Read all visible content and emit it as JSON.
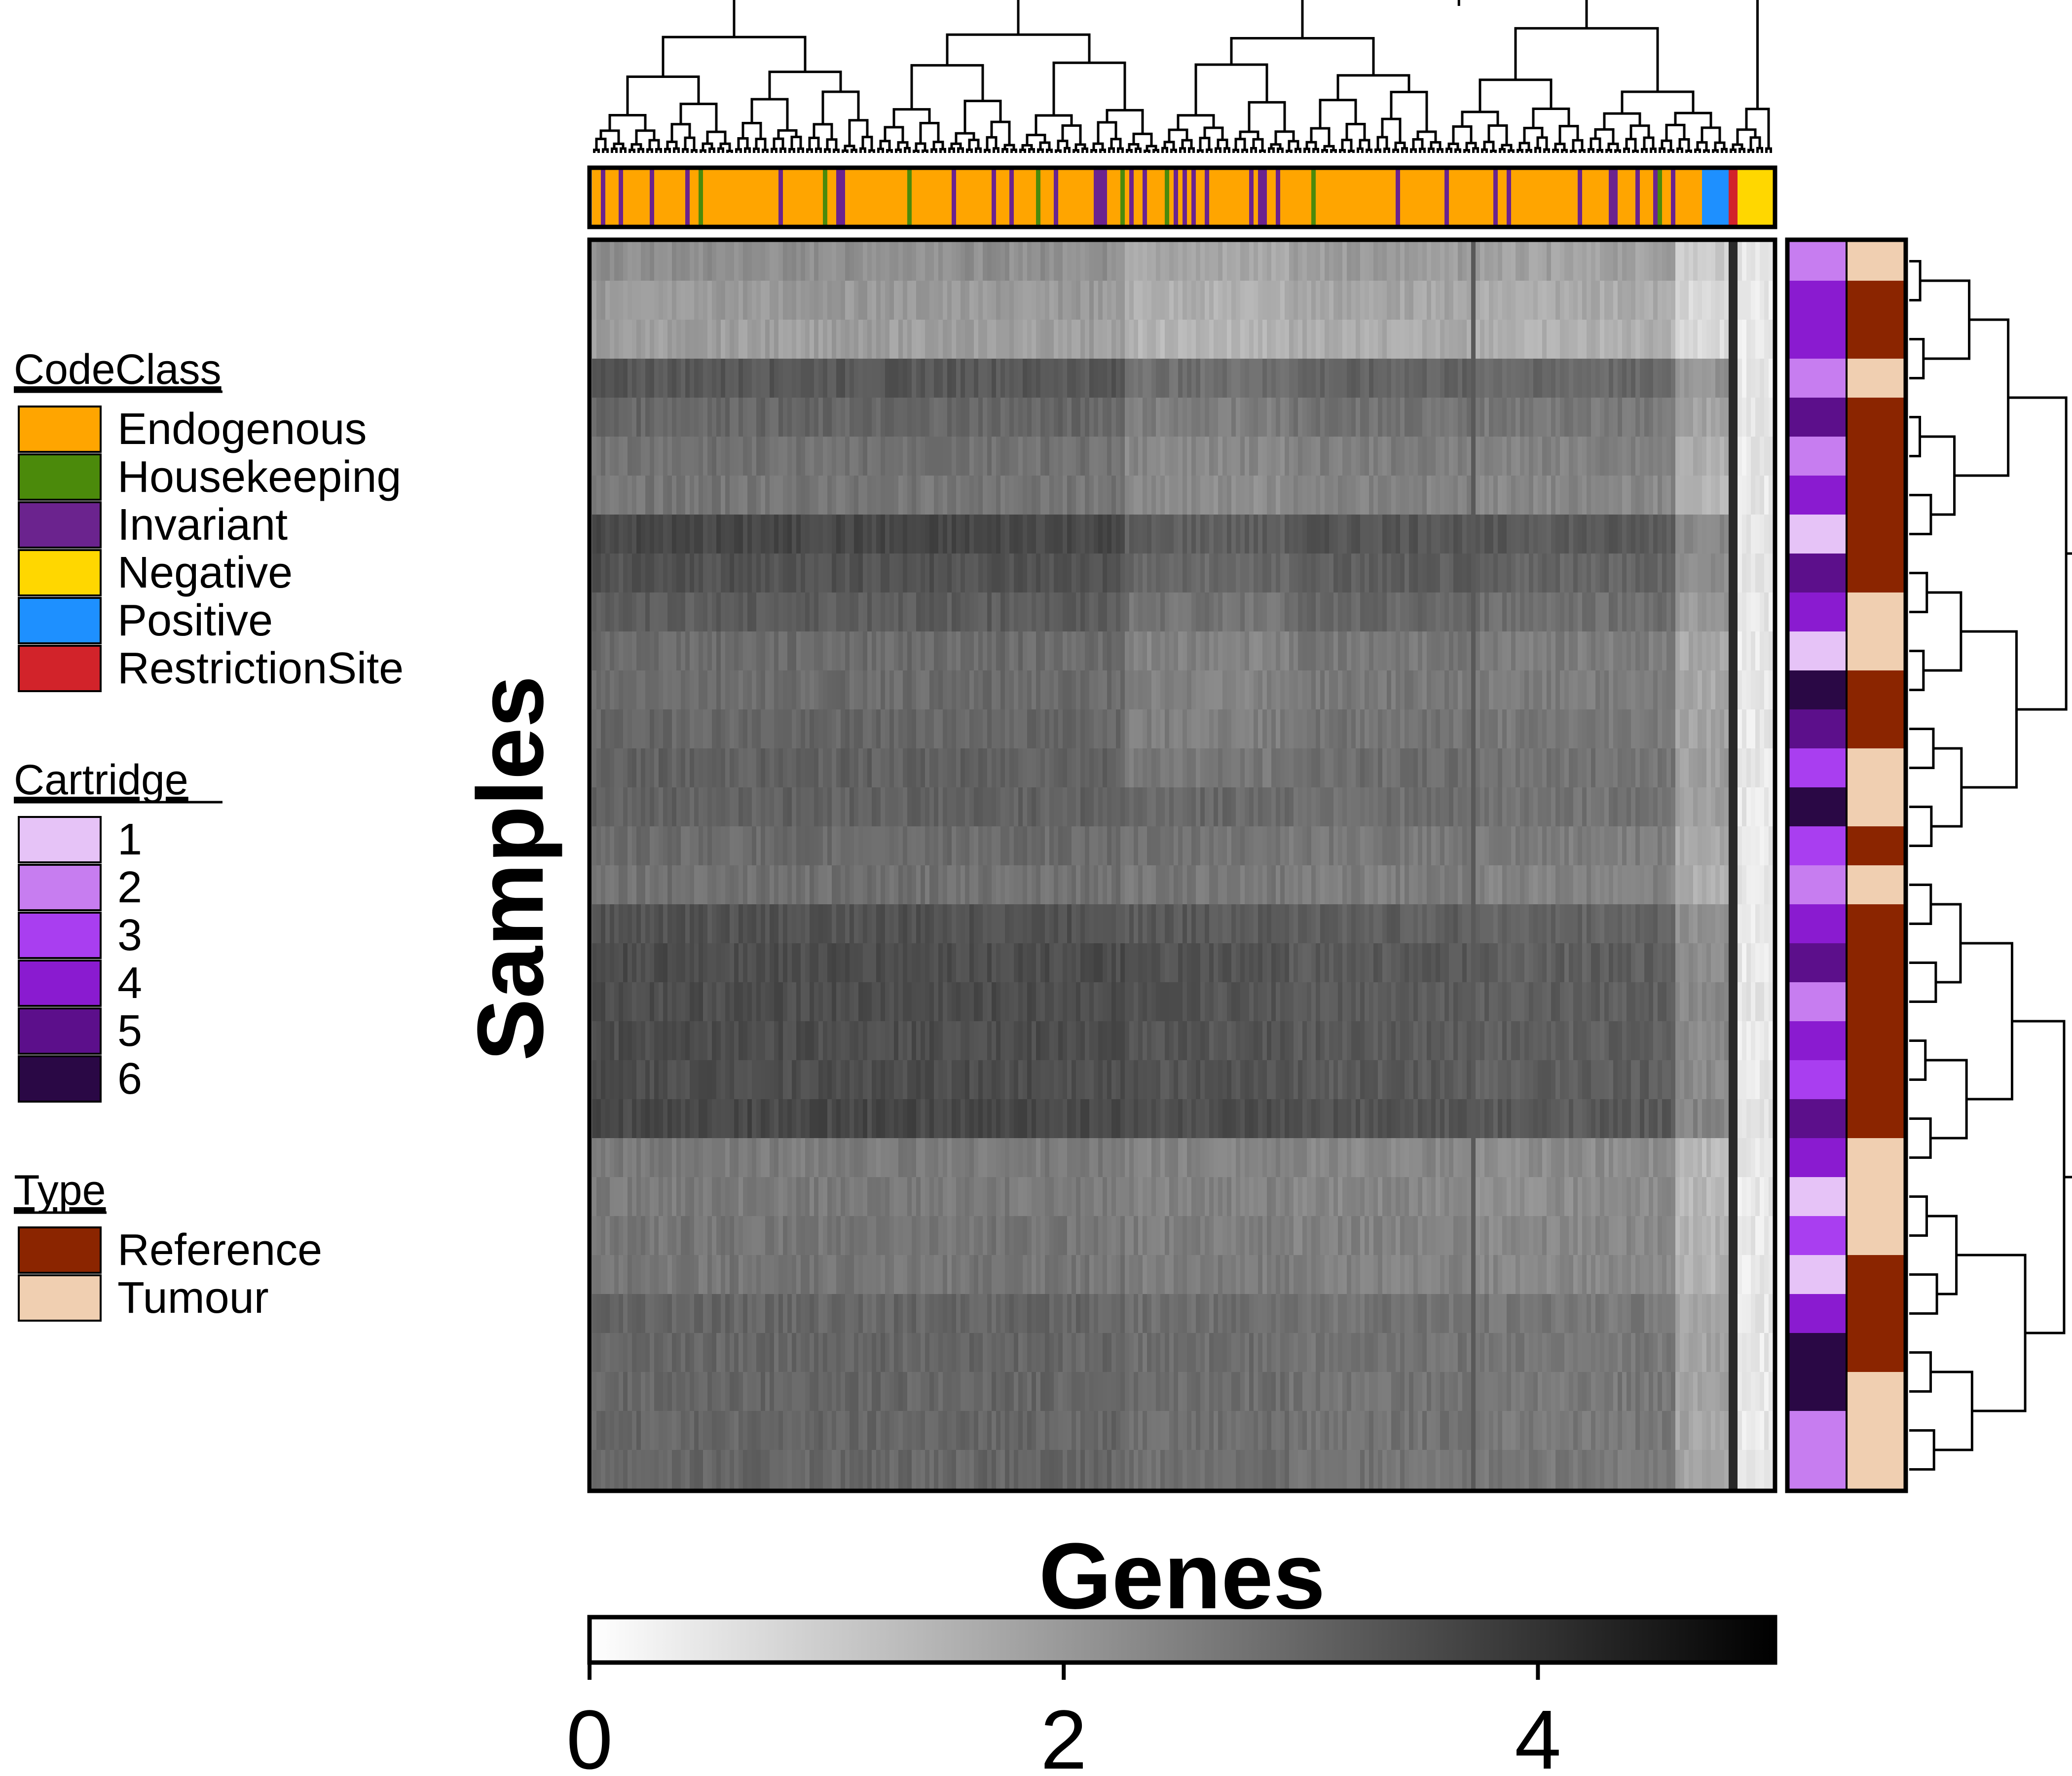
{
  "chart_data": {
    "type": "heatmap",
    "xlabel": "Genes",
    "ylabel": "Samples",
    "n_samples": 32,
    "value_range": [
      0,
      5
    ],
    "colorbar": {
      "ticks": [
        0,
        2,
        4
      ],
      "low_color": "#ffffff",
      "high_color": "#000000"
    },
    "legends": [
      {
        "title": "CodeClass",
        "entries": [
          {
            "label": "Endogenous",
            "color": "#FFA500"
          },
          {
            "label": "Housekeeping",
            "color": "#4B8A0B"
          },
          {
            "label": "Invariant",
            "color": "#6B238E"
          },
          {
            "label": "Negative",
            "color": "#FFD700"
          },
          {
            "label": "Positive",
            "color": "#1E90FF"
          },
          {
            "label": "RestrictionSite",
            "color": "#D2232A"
          }
        ]
      },
      {
        "title": "Cartridge",
        "entries": [
          {
            "label": "1",
            "color": "#E6C3F7"
          },
          {
            "label": "2",
            "color": "#C77DF0"
          },
          {
            "label": "3",
            "color": "#A93EF0"
          },
          {
            "label": "4",
            "color": "#8A1BD0"
          },
          {
            "label": "5",
            "color": "#5C0F8B"
          },
          {
            "label": "6",
            "color": "#2A0845"
          }
        ]
      },
      {
        "title": "Type",
        "entries": [
          {
            "label": "Reference",
            "color": "#8B2500"
          },
          {
            "label": "Tumour",
            "color": "#F0CFB1"
          }
        ]
      }
    ],
    "sample_cartridge": [
      2,
      4,
      4,
      2,
      5,
      2,
      4,
      1,
      5,
      4,
      1,
      6,
      5,
      3,
      6,
      3,
      2,
      4,
      5,
      2,
      4,
      3,
      5,
      4,
      1,
      3,
      1,
      4,
      6,
      6,
      2,
      2
    ],
    "sample_type": [
      "Tumour",
      "Reference",
      "Reference",
      "Tumour",
      "Reference",
      "Reference",
      "Reference",
      "Reference",
      "Reference",
      "Tumour",
      "Tumour",
      "Reference",
      "Reference",
      "Tumour",
      "Tumour",
      "Reference",
      "Tumour",
      "Reference",
      "Reference",
      "Reference",
      "Reference",
      "Reference",
      "Reference",
      "Tumour",
      "Tumour",
      "Tumour",
      "Reference",
      "Reference",
      "Reference",
      "Tumour",
      "Tumour",
      "Tumour"
    ],
    "sample_mean_expression": [
      2.2,
      2.0,
      1.9,
      3.3,
      3.0,
      2.8,
      2.7,
      3.6,
      3.4,
      3.2,
      2.9,
      2.9,
      3.0,
      3.1,
      3.1,
      2.9,
      2.8,
      3.4,
      3.5,
      3.5,
      3.5,
      3.5,
      3.6,
      2.6,
      2.6,
      2.7,
      2.7,
      3.0,
      3.0,
      3.0,
      3.0,
      3.0
    ],
    "gene_codeclass_blocks": [
      {
        "class": "Endogenous",
        "count": 250
      },
      {
        "class": "Positive",
        "count": 6
      },
      {
        "class": "RestrictionSite",
        "count": 2
      },
      {
        "class": "Negative",
        "count": 8
      }
    ]
  }
}
